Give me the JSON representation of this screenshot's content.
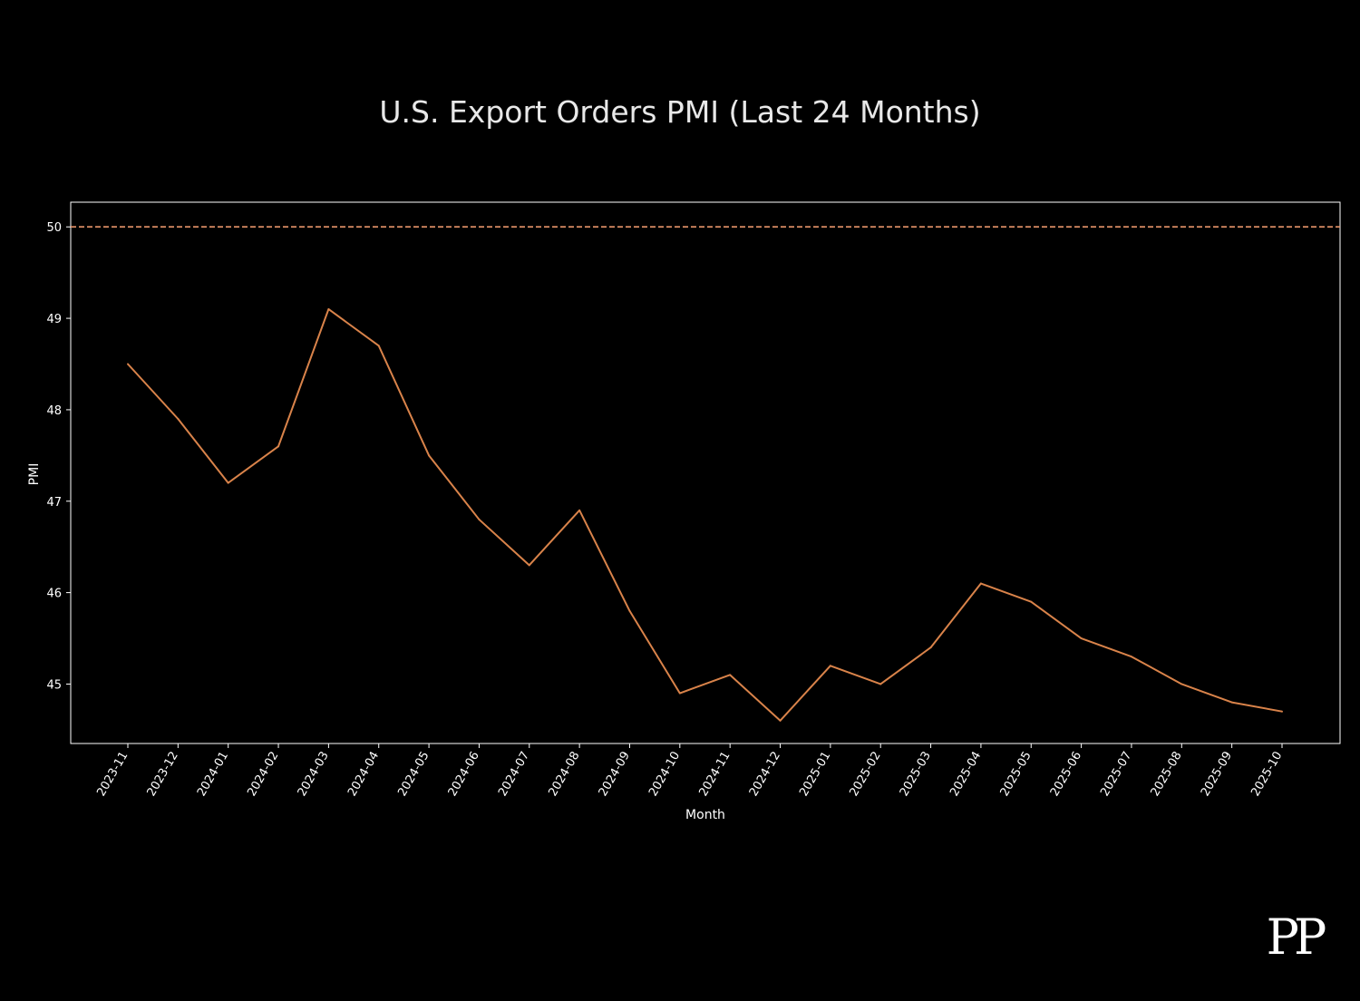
{
  "chart_data": {
    "type": "line",
    "title": "U.S. Export Orders PMI (Last 24 Months)",
    "xlabel": "Month",
    "ylabel": "PMI",
    "x": [
      "2023-11",
      "2023-12",
      "2024-01",
      "2024-02",
      "2024-03",
      "2024-04",
      "2024-05",
      "2024-06",
      "2024-07",
      "2024-08",
      "2024-09",
      "2024-10",
      "2024-11",
      "2024-12",
      "2025-01",
      "2025-02",
      "2025-03",
      "2025-04",
      "2025-05",
      "2025-06",
      "2025-07",
      "2025-08",
      "2025-09",
      "2025-10"
    ],
    "series": [
      {
        "values": [
          48.5,
          47.9,
          47.2,
          47.6,
          49.1,
          48.7,
          47.5,
          46.8,
          46.3,
          46.9,
          45.8,
          44.9,
          45.1,
          44.6,
          45.2,
          45.0,
          45.4,
          46.1,
          45.9,
          45.5,
          45.3,
          45.0,
          44.8,
          44.7
        ],
        "color": "#d9834a"
      }
    ],
    "reference_line": {
      "y": 50,
      "style": "dashed",
      "color": "#e8956a"
    },
    "yticks": [
      45,
      46,
      47,
      48,
      49,
      50
    ],
    "ylim": [
      44.35,
      50.27
    ],
    "grid": false,
    "background": "#000000",
    "axes_color": "#ffffff"
  },
  "logo": {
    "text": "PP"
  }
}
